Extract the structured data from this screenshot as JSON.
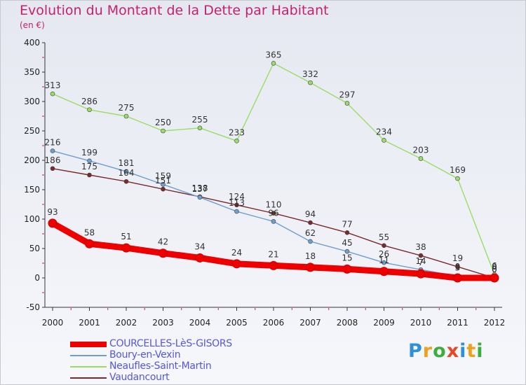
{
  "header": {
    "title": "Evolution du Montant de la Dette par Habitant",
    "unit": "(en €)"
  },
  "logo": "Proxiti",
  "chart_data": {
    "type": "line",
    "title": "Evolution du Montant de la Dette par Habitant",
    "subtitle": "(en €)",
    "xlabel": "",
    "ylabel": "",
    "categories": [
      "2000",
      "2001",
      "2002",
      "2003",
      "2004",
      "2005",
      "2006",
      "2007",
      "2008",
      "2009",
      "2010",
      "2011",
      "2012"
    ],
    "ylim": [
      -50,
      400
    ],
    "yticks": [
      -50,
      0,
      50,
      100,
      150,
      200,
      250,
      300,
      350,
      400
    ],
    "grid": false,
    "legend_position": "bottom-left",
    "series": [
      {
        "name": "COURCELLES-LèS-GISORS",
        "color": "#ee0000",
        "values": [
          93,
          58,
          51,
          42,
          34,
          24,
          21,
          18,
          15,
          11,
          7,
          0,
          0
        ],
        "labels": [
          "93",
          "58",
          "51",
          "42",
          "34",
          "24",
          "21",
          "18",
          "15",
          "11",
          "7",
          "0",
          "0"
        ]
      },
      {
        "name": "Boury-en-Vexin",
        "color": "#6d9fcf",
        "values": [
          216,
          199,
          181,
          159,
          137,
          113,
          96,
          62,
          45,
          26,
          14,
          3,
          0
        ],
        "labels": [
          "216",
          "199",
          "181",
          "159",
          "137",
          "113",
          "96",
          "62",
          "45",
          "26",
          "14",
          "3",
          "0"
        ]
      },
      {
        "name": "Neaufles-Saint-Martin",
        "color": "#99dd66",
        "values": [
          313,
          286,
          275,
          250,
          255,
          233,
          365,
          332,
          297,
          234,
          203,
          169,
          6
        ],
        "labels": [
          "313",
          "286",
          "275",
          "250",
          "255",
          "233",
          "365",
          "332",
          "297",
          "234",
          "203",
          "169",
          "6"
        ]
      },
      {
        "name": "Vaudancourt",
        "color": "#7a2a2a",
        "values": [
          186,
          175,
          164,
          151,
          138,
          124,
          110,
          94,
          77,
          55,
          38,
          19,
          0
        ],
        "labels": [
          "186",
          "175",
          "164",
          "151",
          "138",
          "124",
          "110",
          "94",
          "77",
          "55",
          "38",
          "19",
          "0"
        ]
      }
    ]
  }
}
